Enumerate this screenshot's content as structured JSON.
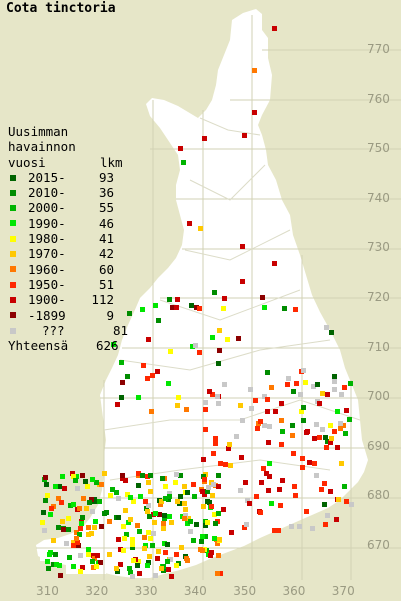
{
  "title": "Cota tinctoria",
  "legend": {
    "heading": [
      "Uusimman",
      "havainnon",
      "vuosi"
    ],
    "count_heading": "lkm",
    "items": [
      {
        "label": "2015-",
        "count": "93",
        "color": "#006400"
      },
      {
        "label": "2010-",
        "count": "36",
        "color": "#008c00"
      },
      {
        "label": "2000-",
        "count": "55",
        "color": "#00b400"
      },
      {
        "label": "1990-",
        "count": "46",
        "color": "#00e600"
      },
      {
        "label": "1980-",
        "count": "41",
        "color": "#ffff00"
      },
      {
        "label": "1970-",
        "count": "42",
        "color": "#ffc800"
      },
      {
        "label": "1960-",
        "count": "60",
        "color": "#ff7800"
      },
      {
        "label": "1950-",
        "count": "51",
        "color": "#ff2800"
      },
      {
        "label": "1900-",
        "count": "112",
        "color": "#c80000"
      },
      {
        "label": "-1899",
        "count": "9",
        "color": "#8c0000"
      },
      {
        "label": "???",
        "count": "81",
        "color": "#c8c8c8"
      }
    ],
    "total_label": "Yhteensä",
    "total_count": "626"
  },
  "axes": {
    "y_labels": [
      "770",
      "760",
      "750",
      "740",
      "730",
      "720",
      "710",
      "700",
      "690",
      "680",
      "670"
    ],
    "x_labels": [
      "310",
      "320",
      "330",
      "340",
      "350",
      "360",
      "370"
    ]
  },
  "colors": {
    "background": "#e6e6c8",
    "land": "#ffffff",
    "grid": "#d2d2b4",
    "borders": "#dcdcc8"
  }
}
